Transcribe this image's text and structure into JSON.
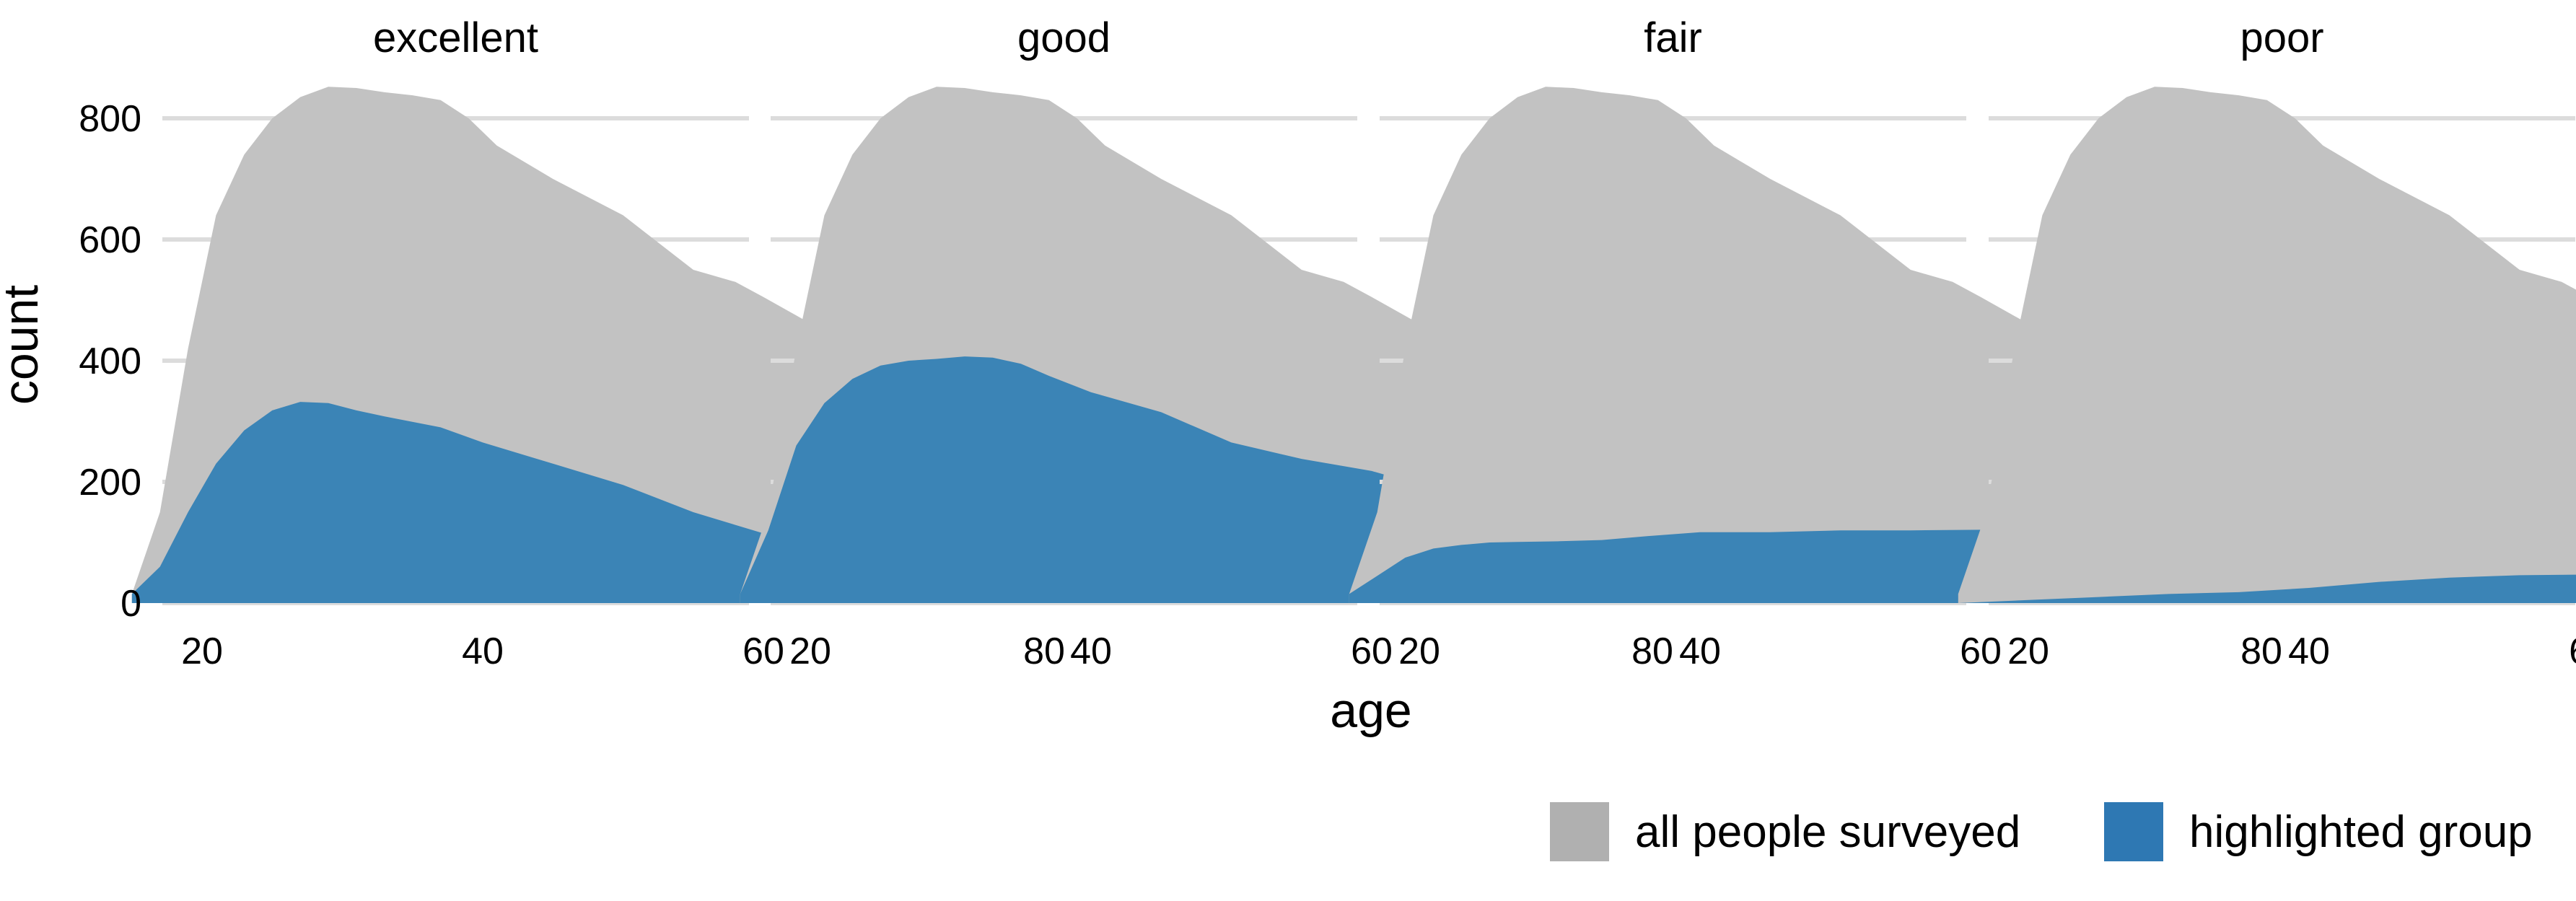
{
  "chart_data": {
    "type": "area",
    "facet_labels": [
      "excellent",
      "good",
      "fair",
      "poor"
    ],
    "xlabel": "age",
    "ylabel": "count",
    "xlim": [
      15,
      95
    ],
    "ylim": [
      0,
      850
    ],
    "x_ticks": [
      20,
      40,
      60,
      80
    ],
    "y_ticks": [
      0,
      200,
      400,
      600,
      800
    ],
    "grid": "horizontal",
    "legend": {
      "placement": "bottom-right",
      "items": [
        {
          "label": "all people surveyed",
          "color": "#c2c2c2",
          "swatch": "#b0b0b0"
        },
        {
          "label": "highlighted group",
          "color": "#3b84b6",
          "swatch": "#2e78b3"
        }
      ]
    },
    "background_series": {
      "name": "all people surveyed",
      "x": [
        15,
        17,
        19,
        21,
        23,
        25,
        27,
        29,
        31,
        33,
        35,
        37,
        39,
        41,
        45,
        50,
        55,
        58,
        60,
        65,
        67,
        70,
        75,
        80,
        84,
        87,
        89,
        91,
        93
      ],
      "values": [
        15,
        150,
        420,
        640,
        740,
        800,
        835,
        852,
        850,
        843,
        838,
        830,
        800,
        755,
        700,
        640,
        550,
        530,
        505,
        440,
        425,
        395,
        310,
        195,
        125,
        95,
        70,
        20,
        0
      ]
    },
    "panels": [
      {
        "name": "excellent",
        "x": [
          15,
          17,
          19,
          21,
          23,
          25,
          27,
          29,
          31,
          33,
          37,
          40,
          45,
          50,
          55,
          60,
          65,
          70,
          75,
          80,
          85,
          90,
          93
        ],
        "values": [
          15,
          60,
          150,
          230,
          285,
          318,
          332,
          330,
          318,
          308,
          290,
          265,
          230,
          195,
          150,
          115,
          98,
          75,
          55,
          35,
          20,
          10,
          0
        ]
      },
      {
        "name": "good",
        "x": [
          15,
          17,
          19,
          21,
          23,
          25,
          27,
          29,
          31,
          33,
          35,
          37,
          40,
          45,
          50,
          55,
          60,
          65,
          70,
          75,
          80,
          85,
          90,
          93
        ],
        "values": [
          15,
          120,
          260,
          330,
          370,
          392,
          400,
          403,
          407,
          405,
          395,
          375,
          348,
          315,
          265,
          238,
          218,
          185,
          165,
          130,
          85,
          50,
          25,
          0
        ]
      },
      {
        "name": "fair",
        "x": [
          15,
          17,
          19,
          21,
          23,
          25,
          27,
          30,
          33,
          36,
          40,
          45,
          50,
          55,
          60,
          65,
          68,
          70,
          75,
          80,
          85,
          90,
          93
        ],
        "values": [
          15,
          45,
          75,
          90,
          96,
          100,
          101,
          102,
          104,
          110,
          117,
          117,
          120,
          120,
          121,
          119,
          117,
          113,
          95,
          60,
          35,
          15,
          0
        ]
      },
      {
        "name": "poor",
        "x": [
          15,
          20,
          25,
          30,
          35,
          40,
          45,
          50,
          55,
          60,
          65,
          70,
          75,
          80,
          85,
          90,
          93
        ],
        "values": [
          0,
          5,
          10,
          15,
          18,
          25,
          35,
          42,
          46,
          47,
          46,
          45,
          38,
          28,
          18,
          8,
          0
        ]
      }
    ]
  }
}
